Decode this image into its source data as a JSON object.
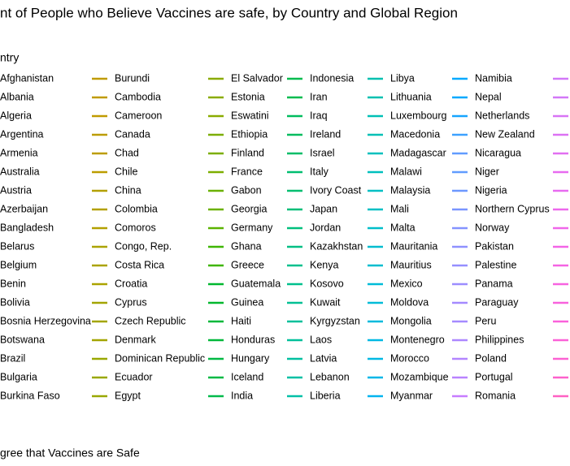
{
  "chart_data": {
    "type": "legend",
    "title": "nt of People who Believe Vaccines are safe, by Country and Global Region",
    "legend_title": "ntry",
    "y_label": "gree that Vaccines are Safe",
    "series": [
      {
        "name": "Afghanistan"
      },
      {
        "name": "Albania"
      },
      {
        "name": "Algeria"
      },
      {
        "name": "Argentina"
      },
      {
        "name": "Armenia"
      },
      {
        "name": "Australia"
      },
      {
        "name": "Austria"
      },
      {
        "name": "Azerbaijan"
      },
      {
        "name": "Bangladesh"
      },
      {
        "name": "Belarus"
      },
      {
        "name": "Belgium"
      },
      {
        "name": "Benin"
      },
      {
        "name": "Bolivia"
      },
      {
        "name": "Bosnia Herzegovina"
      },
      {
        "name": "Botswana"
      },
      {
        "name": "Brazil"
      },
      {
        "name": "Bulgaria"
      },
      {
        "name": "Burkina Faso"
      },
      {
        "name": "Burundi",
        "color": "#c09b00"
      },
      {
        "name": "Cambodia",
        "color": "#c09b00"
      },
      {
        "name": "Cameroon",
        "color": "#c09b00"
      },
      {
        "name": "Canada",
        "color": "#bc9d00"
      },
      {
        "name": "Chad",
        "color": "#bc9d00"
      },
      {
        "name": "Chile",
        "color": "#bc9d00"
      },
      {
        "name": "China",
        "color": "#b3a000"
      },
      {
        "name": "Colombia",
        "color": "#b3a000"
      },
      {
        "name": "Comoros",
        "color": "#b3a000"
      },
      {
        "name": "Congo, Rep.",
        "color": "#aba300"
      },
      {
        "name": "Costa Rica",
        "color": "#aba300"
      },
      {
        "name": "Croatia",
        "color": "#aba300"
      },
      {
        "name": "Cyprus",
        "color": "#a3a500"
      },
      {
        "name": "Czech Republic",
        "color": "#a3a500"
      },
      {
        "name": "Denmark",
        "color": "#a3a500"
      },
      {
        "name": "Dominican Republic",
        "color": "#99a800"
      },
      {
        "name": "Ecuador",
        "color": "#99a800"
      },
      {
        "name": "Egypt",
        "color": "#99a800"
      },
      {
        "name": "El Salvador",
        "color": "#8aab00"
      },
      {
        "name": "Estonia",
        "color": "#8aab00"
      },
      {
        "name": "Eswatini",
        "color": "#8aab00"
      },
      {
        "name": "Ethiopia",
        "color": "#7cae00"
      },
      {
        "name": "Finland",
        "color": "#7cae00"
      },
      {
        "name": "France",
        "color": "#7cae00"
      },
      {
        "name": "Gabon",
        "color": "#6bb100"
      },
      {
        "name": "Georgia",
        "color": "#6bb100"
      },
      {
        "name": "Germany",
        "color": "#5bb300"
      },
      {
        "name": "Ghana",
        "color": "#3fb600"
      },
      {
        "name": "Greece",
        "color": "#3fb600"
      },
      {
        "name": "Guatemala",
        "color": "#00b72e"
      },
      {
        "name": "Guinea",
        "color": "#00b72e"
      },
      {
        "name": "Haiti",
        "color": "#00b83a"
      },
      {
        "name": "Honduras",
        "color": "#00b83a"
      },
      {
        "name": "Hungary",
        "color": "#00b944"
      },
      {
        "name": "Iceland",
        "color": "#00b944"
      },
      {
        "name": "India",
        "color": "#00ba4b"
      },
      {
        "name": "Indonesia",
        "color": "#00bb4e"
      },
      {
        "name": "Iran",
        "color": "#00bb4e"
      },
      {
        "name": "Iraq",
        "color": "#00bc5e"
      },
      {
        "name": "Ireland",
        "color": "#00bc5e"
      },
      {
        "name": "Israel",
        "color": "#00bd68"
      },
      {
        "name": "Italy",
        "color": "#00be70"
      },
      {
        "name": "Ivory Coast",
        "color": "#00be70"
      },
      {
        "name": "Japan",
        "color": "#00be78"
      },
      {
        "name": "Jordan",
        "color": "#00bf7d"
      },
      {
        "name": "Kazakhstan",
        "color": "#00bf84"
      },
      {
        "name": "Kenya",
        "color": "#00c08d"
      },
      {
        "name": "Kosovo",
        "color": "#00c08d"
      },
      {
        "name": "Kuwait",
        "color": "#00c094"
      },
      {
        "name": "Kyrgyzstan",
        "color": "#00c09a"
      },
      {
        "name": "Laos",
        "color": "#00c09a"
      },
      {
        "name": "Latvia",
        "color": "#00c0a0"
      },
      {
        "name": "Lebanon",
        "color": "#00c0a4"
      },
      {
        "name": "Liberia",
        "color": "#00c0a7"
      },
      {
        "name": "Libya",
        "color": "#00c0b0"
      },
      {
        "name": "Lithuania",
        "color": "#00c0b0"
      },
      {
        "name": "Luxembourg",
        "color": "#00c0b6"
      },
      {
        "name": "Macedonia",
        "color": "#00c0b6"
      },
      {
        "name": "Madagascar",
        "color": "#00c0be"
      },
      {
        "name": "Malawi",
        "color": "#00c0be"
      },
      {
        "name": "Malaysia",
        "color": "#00bfc4"
      },
      {
        "name": "Mali",
        "color": "#00bfc4"
      },
      {
        "name": "Malta",
        "color": "#00bec9"
      },
      {
        "name": "Mauritania",
        "color": "#00bdcf"
      },
      {
        "name": "Mauritius",
        "color": "#00bdcf"
      },
      {
        "name": "Mexico",
        "color": "#00bcd8"
      },
      {
        "name": "Moldova",
        "color": "#00bcd8"
      },
      {
        "name": "Mongolia",
        "color": "#00badd"
      },
      {
        "name": "Montenegro",
        "color": "#00b9e3"
      },
      {
        "name": "Morocco",
        "color": "#00b9e3"
      },
      {
        "name": "Mozambique",
        "color": "#00b7e8"
      },
      {
        "name": "Myanmar",
        "color": "#00b4ef"
      },
      {
        "name": "Namibia",
        "color": "#00a9ff"
      },
      {
        "name": "Nepal",
        "color": "#00a9ff"
      },
      {
        "name": "Netherlands",
        "color": "#16a5ff"
      },
      {
        "name": "New Zealand",
        "color": "#3da1ff"
      },
      {
        "name": "Nicaragua",
        "color": "#619cff"
      },
      {
        "name": "Niger",
        "color": "#619cff"
      },
      {
        "name": "Nigeria",
        "color": "#6d98ff"
      },
      {
        "name": "Northern Cyprus",
        "color": "#7a95ff"
      },
      {
        "name": "Norway",
        "color": "#8493ff"
      },
      {
        "name": "Pakistan",
        "color": "#8f91ff"
      },
      {
        "name": "Palestine",
        "color": "#958fff"
      },
      {
        "name": "Panama",
        "color": "#9c8dff"
      },
      {
        "name": "Paraguay",
        "color": "#a58aff"
      },
      {
        "name": "Peru",
        "color": "#a58aff"
      },
      {
        "name": "Philippines",
        "color": "#ad87ff"
      },
      {
        "name": "Poland",
        "color": "#b385ff"
      },
      {
        "name": "Portugal",
        "color": "#b983ff"
      },
      {
        "name": "Romania",
        "color": "#c77cff"
      },
      {
        "name": null,
        "color": "#d277f8"
      },
      {
        "name": null,
        "color": "#d277f8"
      },
      {
        "name": null,
        "color": "#d874f5"
      },
      {
        "name": null,
        "color": "#dc72f3"
      },
      {
        "name": null,
        "color": "#e16ff1"
      },
      {
        "name": null,
        "color": "#e86bf0"
      },
      {
        "name": null,
        "color": "#e86bf0"
      },
      {
        "name": null,
        "color": "#ed68ec"
      },
      {
        "name": null,
        "color": "#f066ea"
      },
      {
        "name": null,
        "color": "#f364e7"
      },
      {
        "name": null,
        "color": "#f564e3"
      },
      {
        "name": null,
        "color": "#f763e0"
      },
      {
        "name": null,
        "color": "#f862dd"
      },
      {
        "name": null,
        "color": "#fa62db"
      },
      {
        "name": null,
        "color": "#fb61d7"
      },
      {
        "name": null,
        "color": "#fc61d2"
      },
      {
        "name": null,
        "color": "#fd61cc"
      },
      {
        "name": null,
        "color": "#ff61c3"
      }
    ]
  }
}
